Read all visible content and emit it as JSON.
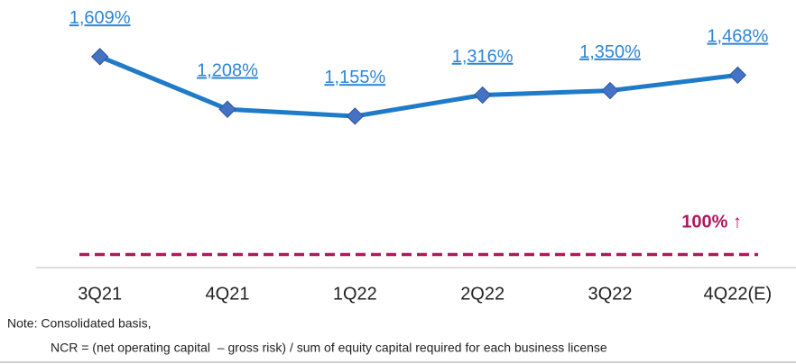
{
  "chart_data": {
    "type": "line",
    "categories": [
      "3Q21",
      "4Q21",
      "1Q22",
      "2Q22",
      "3Q22",
      "4Q22(E)"
    ],
    "series": [
      {
        "name": "NCR",
        "color": "#1f7bc8",
        "values": [
          1609,
          1208,
          1155,
          1316,
          1350,
          1468
        ],
        "value_labels": [
          "1,609%",
          "1,208%",
          "1,155%",
          "1,316%",
          "1,350%",
          "1,468%"
        ]
      }
    ],
    "marker_color": "#4472c4",
    "ylim": [
      0,
      2000
    ],
    "reference": {
      "value": 100,
      "label": "100% ↑",
      "color": "#b0175e"
    },
    "notes": [
      "Note: Consolidated basis,",
      "NCR = (net operating capital  – gross risk) / sum of equity capital required for each business license"
    ]
  }
}
